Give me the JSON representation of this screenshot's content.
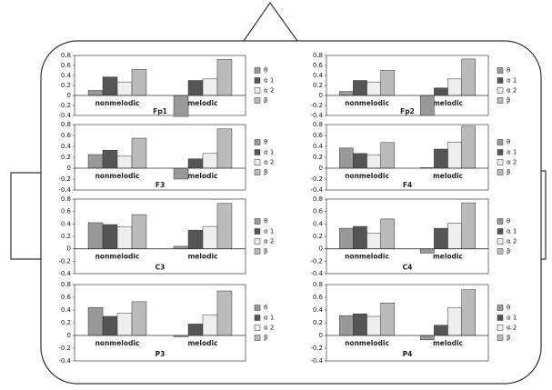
{
  "chart_data": [
    {
      "type": "bar",
      "title": "Fp1",
      "categories": [
        "nonmelodic",
        "melodic"
      ],
      "series": [
        {
          "name": "θ",
          "color": "#999999",
          "values": [
            0.1,
            -0.42
          ]
        },
        {
          "name": "α 1",
          "color": "#555555",
          "values": [
            0.37,
            0.3
          ]
        },
        {
          "name": "α 2",
          "color": "#eeeeee",
          "values": [
            0.27,
            0.33
          ]
        },
        {
          "name": "β",
          "color": "#bbbbbb",
          "values": [
            0.52,
            0.72
          ]
        }
      ],
      "ylim": [
        -0.4,
        0.8
      ],
      "yticks": [
        -0.4,
        -0.2,
        0,
        0.2,
        0.4,
        0.6,
        0.8
      ]
    },
    {
      "type": "bar",
      "title": "Fp2",
      "categories": [
        "nonmelodic",
        "melodic"
      ],
      "series": [
        {
          "name": "θ",
          "color": "#999999",
          "values": [
            0.08,
            -0.4
          ]
        },
        {
          "name": "α 1",
          "color": "#555555",
          "values": [
            0.3,
            0.15
          ]
        },
        {
          "name": "α 2",
          "color": "#eeeeee",
          "values": [
            0.27,
            0.33
          ]
        },
        {
          "name": "β",
          "color": "#bbbbbb",
          "values": [
            0.5,
            0.73
          ]
        }
      ],
      "ylim": [
        -0.4,
        0.8
      ],
      "yticks": [
        -0.4,
        -0.2,
        0,
        0.2,
        0.4,
        0.6,
        0.8
      ]
    },
    {
      "type": "bar",
      "title": "F3",
      "categories": [
        "nonmelodic",
        "melodic"
      ],
      "series": [
        {
          "name": "θ",
          "color": "#999999",
          "values": [
            0.25,
            -0.2
          ]
        },
        {
          "name": "α 1",
          "color": "#555555",
          "values": [
            0.33,
            0.17
          ]
        },
        {
          "name": "α 2",
          "color": "#eeeeee",
          "values": [
            0.22,
            0.27
          ]
        },
        {
          "name": "β",
          "color": "#bbbbbb",
          "values": [
            0.55,
            0.72
          ]
        }
      ],
      "ylim": [
        -0.4,
        0.8
      ],
      "yticks": [
        -0.4,
        -0.2,
        0,
        0.2,
        0.4,
        0.6,
        0.8
      ]
    },
    {
      "type": "bar",
      "title": "F4",
      "categories": [
        "nonmelodic",
        "melodic"
      ],
      "series": [
        {
          "name": "θ",
          "color": "#999999",
          "values": [
            0.37,
            0.01
          ]
        },
        {
          "name": "α 1",
          "color": "#555555",
          "values": [
            0.27,
            0.35
          ]
        },
        {
          "name": "α 2",
          "color": "#eeeeee",
          "values": [
            0.24,
            0.48
          ]
        },
        {
          "name": "β",
          "color": "#bbbbbb",
          "values": [
            0.47,
            0.77
          ]
        }
      ],
      "ylim": [
        -0.4,
        0.8
      ],
      "yticks": [
        -0.4,
        -0.2,
        0,
        0.2,
        0.4,
        0.6,
        0.8
      ]
    },
    {
      "type": "bar",
      "title": "C3",
      "categories": [
        "nonmelodic",
        "melodic"
      ],
      "series": [
        {
          "name": "θ",
          "color": "#999999",
          "values": [
            0.42,
            0.04
          ]
        },
        {
          "name": "α 1",
          "color": "#555555",
          "values": [
            0.39,
            0.3
          ]
        },
        {
          "name": "α 2",
          "color": "#eeeeee",
          "values": [
            0.35,
            0.36
          ]
        },
        {
          "name": "β",
          "color": "#bbbbbb",
          "values": [
            0.55,
            0.73
          ]
        }
      ],
      "ylim": [
        -0.4,
        0.8
      ],
      "yticks": [
        -0.4,
        -0.2,
        0,
        0.2,
        0.4,
        0.6,
        0.8
      ]
    },
    {
      "type": "bar",
      "title": "C4",
      "categories": [
        "nonmelodic",
        "melodic"
      ],
      "series": [
        {
          "name": "θ",
          "color": "#999999",
          "values": [
            0.33,
            -0.07
          ]
        },
        {
          "name": "α 1",
          "color": "#555555",
          "values": [
            0.36,
            0.33
          ]
        },
        {
          "name": "α 2",
          "color": "#eeeeee",
          "values": [
            0.25,
            0.41
          ]
        },
        {
          "name": "β",
          "color": "#bbbbbb",
          "values": [
            0.48,
            0.74
          ]
        }
      ],
      "ylim": [
        -0.4,
        0.8
      ],
      "yticks": [
        -0.4,
        -0.2,
        0,
        0.2,
        0.4,
        0.6,
        0.8
      ]
    },
    {
      "type": "bar",
      "title": "P3",
      "categories": [
        "nonmelodic",
        "melodic"
      ],
      "series": [
        {
          "name": "θ",
          "color": "#999999",
          "values": [
            0.44,
            -0.02
          ]
        },
        {
          "name": "α 1",
          "color": "#555555",
          "values": [
            0.3,
            0.18
          ]
        },
        {
          "name": "α 2",
          "color": "#eeeeee",
          "values": [
            0.35,
            0.32
          ]
        },
        {
          "name": "β",
          "color": "#bbbbbb",
          "values": [
            0.53,
            0.7
          ]
        }
      ],
      "ylim": [
        -0.4,
        0.8
      ],
      "yticks": [
        -0.4,
        -0.2,
        0,
        0.2,
        0.4,
        0.6,
        0.8
      ]
    },
    {
      "type": "bar",
      "title": "P4",
      "categories": [
        "nonmelodic",
        "melodic"
      ],
      "series": [
        {
          "name": "θ",
          "color": "#999999",
          "values": [
            0.31,
            -0.07
          ]
        },
        {
          "name": "α 1",
          "color": "#555555",
          "values": [
            0.34,
            0.16
          ]
        },
        {
          "name": "α 2",
          "color": "#eeeeee",
          "values": [
            0.3,
            0.44
          ]
        },
        {
          "name": "β",
          "color": "#bbbbbb",
          "values": [
            0.51,
            0.72
          ]
        }
      ],
      "ylim": [
        -0.4,
        0.8
      ],
      "yticks": [
        -0.4,
        -0.2,
        0,
        0.2,
        0.4,
        0.6,
        0.8
      ]
    }
  ]
}
